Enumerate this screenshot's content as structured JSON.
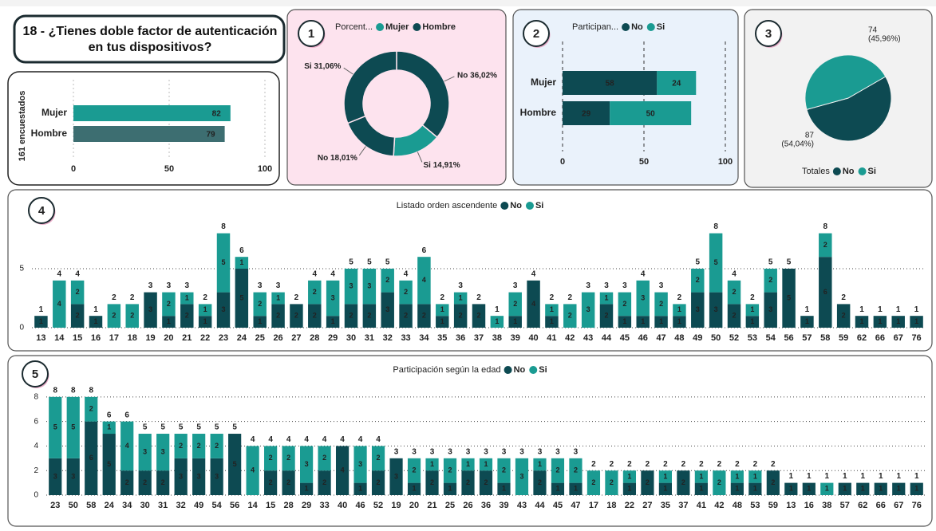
{
  "title_card": {
    "title": "18 - ¿Tienes doble factor de autenticación en tus dispositivos?"
  },
  "chart_data": [
    {
      "type": "hbar",
      "y_label": "161 encuestados",
      "categories": [
        "Mujer",
        "Hombre"
      ],
      "values": [
        82,
        79
      ],
      "colors": [
        "#1a9b92",
        "#3d6e71"
      ],
      "xlim": [
        0,
        100
      ],
      "xticks": [
        0,
        50,
        100
      ],
      "grid": true
    },
    {
      "type": "donut",
      "badge": "1",
      "legend_title": "Porcent...",
      "legend": [
        {
          "name": "Mujer",
          "color": "#1a9b92"
        },
        {
          "name": "Hombre",
          "color": "#0d4a52"
        }
      ],
      "categories": [
        "No",
        "Si",
        "No",
        "Si"
      ],
      "values": [
        36.02,
        14.91,
        18.01,
        31.06
      ],
      "value_labels": [
        "36,02%",
        "14,91%",
        "18,01%",
        "31,06%"
      ],
      "colors": [
        "#0d4a52",
        "#1a9b92",
        "#0d4a52",
        "#0d4a52"
      ]
    },
    {
      "type": "stacked-hbar",
      "badge": "2",
      "legend_title": "Participan...",
      "categories": [
        "Mujer",
        "Hombre"
      ],
      "series": [
        {
          "name": "No",
          "color": "#0d4a52",
          "values": [
            58,
            29
          ]
        },
        {
          "name": "Si",
          "color": "#1a9b92",
          "values": [
            24,
            50
          ]
        }
      ],
      "xlim": [
        0,
        100
      ],
      "xticks": [
        0,
        50,
        100
      ],
      "grid": true
    },
    {
      "type": "pie",
      "badge": "3",
      "legend_title": "Totales",
      "categories": [
        "No",
        "Si"
      ],
      "values": [
        87,
        74
      ],
      "value_labels": [
        "(54,04%)",
        "(45,96%)"
      ],
      "colors": [
        "#0d4a52",
        "#1a9b92"
      ]
    },
    {
      "type": "stacked-bar",
      "badge": "4",
      "title": "Listado orden ascendente",
      "categories": [
        "13",
        "14",
        "15",
        "16",
        "17",
        "18",
        "19",
        "20",
        "21",
        "22",
        "23",
        "24",
        "25",
        "26",
        "27",
        "28",
        "29",
        "30",
        "31",
        "32",
        "33",
        "34",
        "35",
        "36",
        "37",
        "38",
        "39",
        "40",
        "41",
        "42",
        "43",
        "44",
        "45",
        "46",
        "47",
        "48",
        "49",
        "50",
        "52",
        "53",
        "54",
        "56",
        "57",
        "58",
        "59",
        "62",
        "66",
        "67",
        "76"
      ],
      "series": [
        {
          "name": "No",
          "color": "#0d4a52",
          "values": [
            1,
            null,
            2,
            1,
            null,
            null,
            3,
            1,
            2,
            1,
            3,
            5,
            1,
            2,
            2,
            2,
            1,
            2,
            2,
            3,
            2,
            2,
            1,
            2,
            2,
            null,
            1,
            4,
            1,
            null,
            null,
            2,
            1,
            1,
            1,
            1,
            3,
            3,
            2,
            1,
            3,
            5,
            1,
            6,
            2,
            1,
            1,
            1,
            1
          ]
        },
        {
          "name": "Si",
          "color": "#1a9b92",
          "values": [
            null,
            4,
            2,
            null,
            2,
            2,
            null,
            2,
            1,
            1,
            5,
            1,
            2,
            1,
            null,
            2,
            3,
            3,
            3,
            2,
            2,
            4,
            1,
            1,
            null,
            1,
            2,
            null,
            1,
            2,
            3,
            1,
            2,
            3,
            2,
            1,
            2,
            5,
            2,
            1,
            2,
            null,
            null,
            2,
            null,
            null,
            null,
            null,
            null
          ]
        }
      ],
      "totals": [
        1,
        4,
        4,
        1,
        2,
        2,
        3,
        3,
        3,
        2,
        8,
        6,
        3,
        3,
        2,
        4,
        4,
        5,
        5,
        5,
        4,
        6,
        2,
        3,
        2,
        1,
        3,
        4,
        2,
        2,
        3,
        3,
        3,
        4,
        3,
        2,
        5,
        8,
        4,
        2,
        5,
        5,
        1,
        8,
        2,
        1,
        1,
        1,
        1
      ],
      "ylim": [
        0,
        8.6
      ],
      "yticks": [
        0,
        5
      ],
      "grid": true
    },
    {
      "type": "stacked-bar",
      "badge": "5",
      "title": "Participación según la edad",
      "categories": [
        "23",
        "50",
        "58",
        "24",
        "34",
        "30",
        "31",
        "32",
        "49",
        "54",
        "56",
        "14",
        "15",
        "28",
        "29",
        "33",
        "40",
        "46",
        "52",
        "19",
        "20",
        "21",
        "25",
        "26",
        "36",
        "39",
        "43",
        "44",
        "45",
        "47",
        "17",
        "18",
        "22",
        "27",
        "35",
        "37",
        "41",
        "42",
        "48",
        "53",
        "59",
        "13",
        "16",
        "38",
        "57",
        "62",
        "66",
        "67",
        "76"
      ],
      "series": [
        {
          "name": "No",
          "color": "#0d4a52",
          "values": [
            3,
            3,
            6,
            5,
            2,
            2,
            2,
            3,
            3,
            3,
            5,
            null,
            2,
            2,
            1,
            2,
            4,
            1,
            2,
            3,
            1,
            2,
            1,
            2,
            2,
            1,
            null,
            2,
            1,
            1,
            null,
            null,
            1,
            2,
            1,
            2,
            1,
            null,
            1,
            1,
            2,
            1,
            1,
            null,
            1,
            1,
            1,
            1,
            1
          ]
        },
        {
          "name": "Si",
          "color": "#1a9b92",
          "values": [
            5,
            5,
            2,
            1,
            4,
            3,
            3,
            2,
            2,
            2,
            null,
            4,
            2,
            2,
            3,
            2,
            null,
            3,
            2,
            null,
            2,
            1,
            2,
            1,
            1,
            2,
            3,
            1,
            2,
            2,
            2,
            2,
            1,
            null,
            1,
            null,
            1,
            2,
            1,
            1,
            null,
            null,
            null,
            1,
            null,
            null,
            null,
            null,
            null
          ]
        }
      ],
      "totals": [
        8,
        8,
        8,
        6,
        6,
        5,
        5,
        5,
        5,
        5,
        5,
        4,
        4,
        4,
        4,
        4,
        4,
        4,
        4,
        3,
        3,
        3,
        3,
        3,
        3,
        3,
        3,
        3,
        3,
        3,
        2,
        2,
        2,
        2,
        2,
        2,
        2,
        2,
        2,
        2,
        2,
        1,
        1,
        1,
        1,
        1,
        1,
        1,
        1
      ],
      "ylim": [
        0,
        8.6
      ],
      "yticks": [
        0,
        2,
        4,
        6,
        8
      ],
      "grid": true
    }
  ]
}
